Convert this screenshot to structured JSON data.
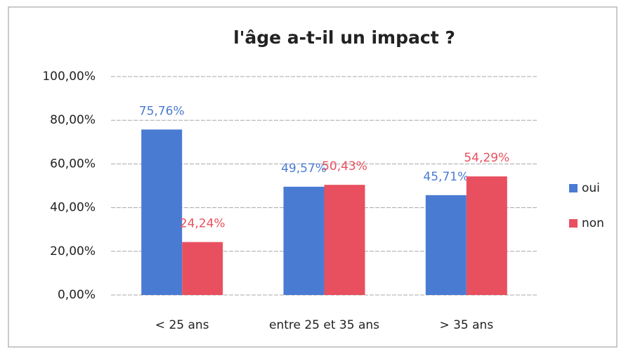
{
  "chart_data": {
    "type": "bar",
    "title": "l'âge a-t-il un impact ?",
    "categories": [
      "< 25 ans",
      "entre 25 et 35 ans",
      "> 35 ans"
    ],
    "series": [
      {
        "name": "oui",
        "color": "#4a7bd3",
        "values": [
          75.76,
          49.57,
          45.71
        ],
        "value_labels": [
          "75,76%",
          "49,57%",
          "45,71%"
        ]
      },
      {
        "name": "non",
        "color": "#e8505f",
        "values": [
          24.24,
          50.43,
          54.29
        ],
        "value_labels": [
          "24,24%",
          "50,43%",
          "54,29%"
        ]
      }
    ],
    "ylim": [
      0,
      100
    ],
    "yticks": [
      {
        "value": 0,
        "label": "0,00%"
      },
      {
        "value": 20,
        "label": "20,00%"
      },
      {
        "value": 40,
        "label": "40,00%"
      },
      {
        "value": 60,
        "label": "60,00%"
      },
      {
        "value": 80,
        "label": "80,00%"
      },
      {
        "value": 100,
        "label": "100,00%"
      }
    ],
    "grid": true,
    "legend": "right"
  }
}
